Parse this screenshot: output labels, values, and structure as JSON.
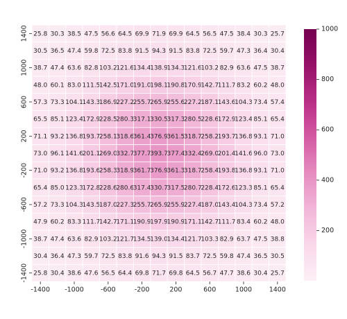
{
  "chart_data": {
    "type": "heatmap",
    "x": [
      -1400,
      -1200,
      -1000,
      -800,
      -600,
      -400,
      -200,
      0,
      200,
      400,
      600,
      800,
      1000,
      1200,
      1400
    ],
    "y": [
      1400,
      1200,
      1000,
      800,
      600,
      400,
      200,
      0,
      -200,
      -400,
      -600,
      -800,
      -1000,
      -1200,
      -1400
    ],
    "values": [
      [
        25.8,
        30.3,
        38.5,
        47.5,
        56.6,
        64.5,
        69.9,
        71.9,
        69.9,
        64.5,
        56.5,
        47.5,
        38.4,
        30.3,
        25.7
      ],
      [
        30.5,
        36.5,
        47.4,
        59.8,
        72.5,
        83.8,
        91.5,
        94.3,
        91.5,
        83.8,
        72.5,
        59.7,
        47.3,
        36.4,
        30.4
      ],
      [
        38.7,
        47.4,
        63.6,
        82.8,
        103.2,
        121.6,
        134.4,
        138.9,
        134.3,
        121.6,
        103.2,
        82.9,
        63.6,
        47.5,
        38.7
      ],
      [
        48.0,
        60.1,
        83.0,
        111.5,
        142.5,
        171.0,
        191.0,
        198.1,
        190.8,
        170.9,
        142.7,
        111.7,
        83.2,
        60.2,
        48.0
      ],
      [
        57.3,
        73.3,
        104.1,
        143.3,
        186.9,
        227.2,
        255.7,
        265.9,
        255.6,
        227.2,
        187.1,
        143.6,
        104.3,
        73.4,
        57.4
      ],
      [
        65.5,
        85.1,
        123.4,
        172.9,
        228.5,
        280.3,
        317.1,
        330.5,
        317.3,
        280.5,
        228.6,
        172.9,
        123.4,
        85.1,
        65.4
      ],
      [
        71.1,
        93.2,
        136.8,
        193.7,
        258.1,
        318.6,
        361.4,
        376.9,
        361.5,
        318.7,
        258.2,
        193.7,
        136.8,
        93.1,
        71.0
      ],
      [
        73.0,
        96.1,
        141.6,
        201.1,
        269.0,
        332.7,
        377.7,
        393.7,
        377.4,
        332.4,
        269.0,
        201.4,
        141.6,
        96.0,
        73.0
      ],
      [
        71.0,
        93.2,
        136.8,
        193.6,
        258.3,
        318.9,
        361.7,
        376.9,
        361.3,
        318.7,
        258.4,
        193.8,
        136.8,
        93.1,
        71.0
      ],
      [
        65.4,
        85.0,
        123.3,
        172.8,
        228.6,
        280.6,
        317.4,
        330.7,
        317.5,
        280.7,
        228.4,
        172.6,
        123.3,
        85.1,
        65.4
      ],
      [
        57.2,
        73.3,
        104.3,
        143.5,
        187.0,
        227.3,
        255.7,
        265.9,
        255.9,
        227.4,
        187.0,
        143.4,
        104.3,
        73.4,
        57.2
      ],
      [
        47.9,
        60.2,
        83.3,
        111.7,
        142.7,
        171.1,
        190.9,
        197.9,
        190.9,
        171.1,
        142.7,
        111.7,
        83.4,
        60.2,
        48.0
      ],
      [
        38.7,
        47.4,
        63.6,
        82.9,
        103.2,
        121.7,
        134.5,
        139.0,
        134.4,
        121.7,
        103.3,
        82.9,
        63.7,
        47.5,
        38.8
      ],
      [
        30.4,
        36.4,
        47.3,
        59.7,
        72.5,
        83.8,
        91.6,
        94.3,
        91.5,
        83.7,
        72.5,
        59.8,
        47.4,
        36.5,
        30.5
      ],
      [
        25.8,
        30.4,
        38.6,
        47.6,
        56.5,
        64.4,
        69.8,
        71.7,
        69.8,
        64.5,
        56.7,
        47.7,
        38.6,
        30.4,
        25.7
      ]
    ],
    "value_labels": [
      [
        "25.8",
        "30.3",
        "38.5",
        "47.5",
        "56.6",
        "64.5",
        "69.9",
        "71.9",
        "69.9",
        "64.5",
        "56.5",
        "47.5",
        "38.4",
        "30.3",
        "25.7"
      ],
      [
        "30.5",
        "36.5",
        "47.4",
        "59.8",
        "72.5",
        "83.8",
        "91.5",
        "94.3",
        "91.5",
        "83.8",
        "72.5",
        "59.7",
        "47.3",
        "36.4",
        "30.4"
      ],
      [
        "38.7",
        "47.4",
        "63.6",
        "82.8",
        "103.2",
        "121.6",
        "134.4",
        "138.9",
        "134.3",
        "121.6",
        "103.2",
        "82.9",
        "63.6",
        "47.5",
        "38.7"
      ],
      [
        "48.0",
        "60.1",
        "83.0",
        "111.5",
        "142.5",
        "171.0",
        "191.0",
        "198.1",
        "190.8",
        "170.9",
        "142.7",
        "111.7",
        "83.2",
        "60.2",
        "48.0"
      ],
      [
        "57.3",
        "73.3",
        "104.1",
        "143.3",
        "186.9",
        "227.2",
        "255.7",
        "265.9",
        "255.6",
        "227.2",
        "187.1",
        "143.6",
        "104.3",
        "73.4",
        "57.4"
      ],
      [
        "65.5",
        "85.1",
        "123.4",
        "172.9",
        "228.5",
        "280.3",
        "317.1",
        "330.5",
        "317.3",
        "280.5",
        "228.6",
        "172.9",
        "123.4",
        "85.1",
        "65.4"
      ],
      [
        "71.1",
        "93.2",
        "136.8",
        "193.7",
        "258.1",
        "318.6",
        "361.4",
        "376.9",
        "361.5",
        "318.7",
        "258.2",
        "193.7",
        "136.8",
        "93.1",
        "71.0"
      ],
      [
        "73.0",
        "96.1",
        "141.6",
        "201.1",
        "269.0",
        "332.7",
        "377.7",
        "393.7",
        "377.4",
        "332.4",
        "269.0",
        "201.4",
        "141.6",
        "96.0",
        "73.0"
      ],
      [
        "71.0",
        "93.2",
        "136.8",
        "193.6",
        "258.3",
        "318.9",
        "361.7",
        "376.9",
        "361.3",
        "318.7",
        "258.4",
        "193.8",
        "136.8",
        "93.1",
        "71.0"
      ],
      [
        "65.4",
        "85.0",
        "123.3",
        "172.8",
        "228.6",
        "280.6",
        "317.4",
        "330.7",
        "317.5",
        "280.7",
        "228.4",
        "172.6",
        "123.3",
        "85.1",
        "65.4"
      ],
      [
        "57.2",
        "73.3",
        "104.3",
        "143.5",
        "187.0",
        "227.3",
        "255.7",
        "265.9",
        "255.9",
        "227.4",
        "187.0",
        "143.4",
        "104.3",
        "73.4",
        "57.2"
      ],
      [
        "47.9",
        "60.2",
        "83.3",
        "111.7",
        "142.7",
        "171.1",
        "190.9",
        "197.9",
        "190.9",
        "171.1",
        "142.7",
        "111.7",
        "83.4",
        "60.2",
        "48.0"
      ],
      [
        "38.7",
        "47.4",
        "63.6",
        "82.9",
        "103.2",
        "121.7",
        "134.5",
        "139.0",
        "134.4",
        "121.7",
        "103.3",
        "82.9",
        "63.7",
        "47.5",
        "38.8"
      ],
      [
        "30.4",
        "36.4",
        "47.3",
        "59.7",
        "72.5",
        "83.8",
        "91.6",
        "94.3",
        "91.5",
        "83.7",
        "72.5",
        "59.8",
        "47.4",
        "36.5",
        "30.5"
      ],
      [
        "25.8",
        "30.4",
        "38.6",
        "47.6",
        "56.5",
        "64.4",
        "69.8",
        "71.7",
        "69.8",
        "64.5",
        "56.7",
        "47.7",
        "38.6",
        "30.4",
        "25.7"
      ]
    ],
    "xlim": [
      -1500,
      1500
    ],
    "ylim": [
      -1500,
      1500
    ],
    "xticks": [
      -1400,
      -1000,
      -600,
      -200,
      200,
      600,
      1000,
      1400
    ],
    "yticks": [
      1400,
      1000,
      600,
      200,
      -200,
      -600,
      -1000,
      -1400
    ],
    "clim": [
      0,
      1000
    ],
    "cticks": [
      200,
      400,
      600,
      800,
      1000
    ],
    "colormap": [
      "#fcf0f6",
      "#f9d8ea",
      "#f2b6d8",
      "#e58cc0",
      "#d45aa2",
      "#b82e86",
      "#961169",
      "#72004f"
    ]
  }
}
